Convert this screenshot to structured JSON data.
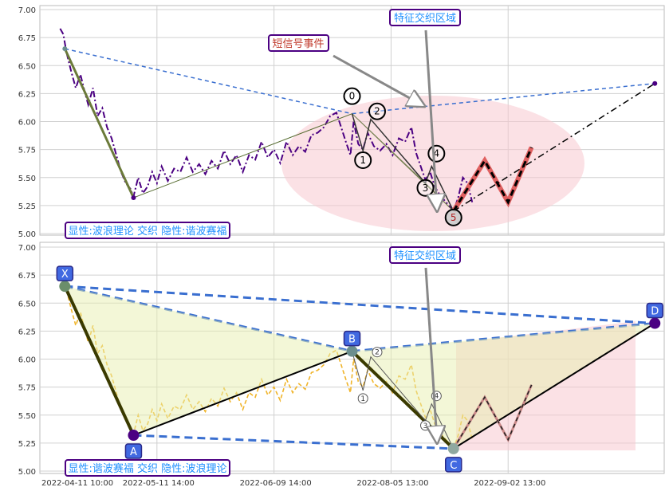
{
  "chart_data": [
    {
      "type": "line",
      "panel": "top",
      "ylim": [
        5.0,
        7.0
      ],
      "yticks": [
        "7.00",
        "6.75",
        "6.50",
        "6.25",
        "6.00",
        "5.75",
        "5.50",
        "5.25",
        "5.00"
      ],
      "price_series": {
        "color": "#4b0082",
        "style": "dash-dot",
        "points": [
          [
            1.3,
            6.83
          ],
          [
            1.5,
            6.78
          ],
          [
            1.7,
            6.62
          ],
          [
            2.0,
            6.45
          ],
          [
            2.3,
            6.3
          ],
          [
            2.6,
            6.42
          ],
          [
            2.9,
            6.25
          ],
          [
            3.1,
            6.15
          ],
          [
            3.4,
            6.3
          ],
          [
            3.7,
            6.05
          ],
          [
            4.0,
            6.12
          ],
          [
            4.3,
            5.95
          ],
          [
            4.6,
            5.85
          ],
          [
            4.9,
            5.7
          ],
          [
            5.2,
            5.55
          ],
          [
            5.5,
            5.45
          ],
          [
            5.8,
            5.4
          ],
          [
            6.0,
            5.33
          ],
          [
            6.3,
            5.5
          ],
          [
            6.6,
            5.36
          ],
          [
            6.9,
            5.42
          ],
          [
            7.2,
            5.55
          ],
          [
            7.5,
            5.45
          ],
          [
            7.8,
            5.6
          ],
          [
            8.2,
            5.47
          ],
          [
            8.6,
            5.58
          ],
          [
            9.0,
            5.55
          ],
          [
            9.4,
            5.68
          ],
          [
            9.8,
            5.55
          ],
          [
            10.2,
            5.62
          ],
          [
            10.6,
            5.53
          ],
          [
            11.0,
            5.65
          ],
          [
            11.4,
            5.58
          ],
          [
            11.8,
            5.74
          ],
          [
            12.2,
            5.62
          ],
          [
            12.6,
            5.7
          ],
          [
            13.0,
            5.55
          ],
          [
            13.4,
            5.7
          ],
          [
            13.8,
            5.66
          ],
          [
            14.2,
            5.82
          ],
          [
            14.6,
            5.68
          ],
          [
            15.0,
            5.75
          ],
          [
            15.4,
            5.63
          ],
          [
            15.8,
            5.82
          ],
          [
            16.2,
            5.7
          ],
          [
            16.6,
            5.78
          ],
          [
            17.0,
            5.73
          ],
          [
            17.4,
            5.88
          ],
          [
            17.8,
            5.9
          ],
          [
            18.2,
            5.95
          ],
          [
            18.6,
            6.05
          ],
          [
            19.0,
            6.08
          ],
          [
            19.3,
            5.95
          ],
          [
            19.6,
            5.82
          ],
          [
            19.9,
            5.7
          ],
          [
            20.1,
            6.0
          ],
          [
            20.4,
            5.8
          ],
          [
            20.7,
            5.75
          ],
          [
            21.0,
            5.9
          ],
          [
            21.4,
            5.78
          ],
          [
            21.8,
            5.74
          ],
          [
            22.2,
            5.8
          ],
          [
            22.6,
            5.7
          ],
          [
            23.0,
            5.85
          ],
          [
            23.4,
            5.82
          ],
          [
            23.8,
            5.95
          ],
          [
            24.1,
            5.72
          ],
          [
            24.4,
            5.6
          ],
          [
            24.7,
            5.48
          ],
          [
            25.0,
            5.55
          ],
          [
            25.3,
            5.42
          ],
          [
            25.6,
            5.35
          ],
          [
            25.9,
            5.3
          ],
          [
            26.2,
            5.25
          ],
          [
            26.5,
            5.2
          ],
          [
            26.8,
            5.32
          ],
          [
            27.1,
            5.5
          ],
          [
            27.4,
            5.45
          ],
          [
            27.7,
            5.28
          ]
        ]
      },
      "wave_points": [
        {
          "label": "",
          "x": 1.6,
          "y": 6.65
        },
        {
          "label": "",
          "x": 6.0,
          "y": 5.32
        },
        {
          "label": "0",
          "x": 20.0,
          "y": 6.07
        },
        {
          "label": "1",
          "x": 20.7,
          "y": 5.74
        },
        {
          "label": "2",
          "x": 21.2,
          "y": 6.02
        },
        {
          "label": "3",
          "x": 24.7,
          "y": 5.45
        },
        {
          "label": "4",
          "x": 25.1,
          "y": 5.6
        },
        {
          "label": "5",
          "x": 26.5,
          "y": 5.2
        }
      ],
      "projection": [
        [
          26.5,
          5.2
        ],
        [
          28.5,
          5.65
        ],
        [
          30.0,
          5.28
        ],
        [
          31.5,
          5.77
        ]
      ],
      "target_point": {
        "x": 39.4,
        "y": 6.34
      },
      "annotations": [
        "显性:波浪理论 交织 隐性:谐波赛福",
        "短信号事件",
        "特征交织区域"
      ]
    },
    {
      "type": "line",
      "panel": "bottom",
      "ylim": [
        5.0,
        7.0
      ],
      "yticks": [
        "7.00",
        "6.75",
        "6.50",
        "6.25",
        "6.00",
        "5.75",
        "5.50",
        "5.25",
        "5.00"
      ],
      "xticks": [
        {
          "label": "2022-04-11 10:00",
          "x": 0
        },
        {
          "label": "2022-05-11 14:00",
          "x": 7.5
        },
        {
          "label": "2022-06-09 14:00",
          "x": 15.0
        },
        {
          "label": "2022-08-05 13:00",
          "x": 22.5
        },
        {
          "label": "2022-09-02 13:00",
          "x": 30.0
        }
      ],
      "price_series": {
        "color": "#f0b429",
        "style": "dashed"
      },
      "harmonic_points": [
        {
          "label": "X",
          "x": 1.6,
          "y": 6.65
        },
        {
          "label": "A",
          "x": 6.0,
          "y": 5.32
        },
        {
          "label": "B",
          "x": 20.0,
          "y": 6.07
        },
        {
          "label": "C",
          "x": 26.5,
          "y": 5.2
        },
        {
          "label": "D",
          "x": 39.4,
          "y": 6.32
        }
      ],
      "wave_labels": [
        "1",
        "2",
        "3",
        "4"
      ],
      "annotations": [
        "显性:谐波赛福 交织 隐性:波浪理论",
        "特征交织区域"
      ]
    }
  ],
  "labels": {
    "top_info": "显性:波浪理论 交织 隐性:谐波赛福",
    "top_signal": "短信号事件",
    "top_zone": "特征交织区域",
    "bottom_info": "显性:谐波赛福 交织 隐性:波浪理论",
    "bottom_zone": "特征交织区域"
  },
  "colors": {
    "grid": "#d0d0d0",
    "axis_text": "#333333",
    "label_border": "#4b0082",
    "label_text": "#1e90ff",
    "signal_text": "#c0392b",
    "zone": "#f8c8cf",
    "harmonic_dash": "#3a6fd0",
    "marker_fill": "#4169e1",
    "red_wave": "#e06060"
  }
}
